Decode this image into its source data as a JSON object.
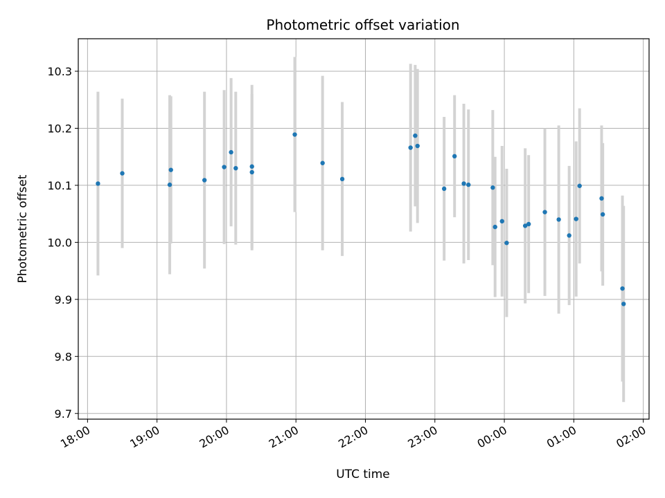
{
  "chart_data": {
    "type": "scatter",
    "title": "Photometric offset variation",
    "xlabel": "UTC time",
    "ylabel": "Photometric offset",
    "x_tick_labels": [
      "18:00",
      "19:00",
      "20:00",
      "21:00",
      "22:00",
      "23:00",
      "00:00",
      "01:00",
      "02:00"
    ],
    "y_tick_labels": [
      "9.7",
      "9.8",
      "9.9",
      "10.0",
      "10.1",
      "10.2",
      "10.3"
    ],
    "y_ticks": [
      9.7,
      9.8,
      9.9,
      10.0,
      10.1,
      10.2,
      10.3
    ],
    "xlim": [
      "17:52",
      "02:05"
    ],
    "ylim": [
      9.69,
      10.357
    ],
    "grid": true,
    "marker_color": "#1f77b4",
    "errorbar_color": "#d3d3d3",
    "points": [
      {
        "x": "18:09",
        "y": 10.103,
        "err": 0.161
      },
      {
        "x": "18:30",
        "y": 10.121,
        "err": 0.131
      },
      {
        "x": "19:11",
        "y": 10.101,
        "err": 0.157
      },
      {
        "x": "19:12",
        "y": 10.127,
        "err": 0.129
      },
      {
        "x": "19:41",
        "y": 10.109,
        "err": 0.155
      },
      {
        "x": "19:58",
        "y": 10.132,
        "err": 0.135
      },
      {
        "x": "20:04",
        "y": 10.158,
        "err": 0.13
      },
      {
        "x": "20:08",
        "y": 10.13,
        "err": 0.134
      },
      {
        "x": "20:22",
        "y": 10.123,
        "err": 0.137
      },
      {
        "x": "20:22",
        "y": 10.133,
        "err": 0.143
      },
      {
        "x": "20:59",
        "y": 10.189,
        "err": 0.136
      },
      {
        "x": "21:23",
        "y": 10.139,
        "err": 0.153
      },
      {
        "x": "21:40",
        "y": 10.111,
        "err": 0.135
      },
      {
        "x": "22:39",
        "y": 10.166,
        "err": 0.147
      },
      {
        "x": "22:43",
        "y": 10.187,
        "err": 0.124
      },
      {
        "x": "22:45",
        "y": 10.169,
        "err": 0.135
      },
      {
        "x": "23:08",
        "y": 10.094,
        "err": 0.126
      },
      {
        "x": "23:17",
        "y": 10.151,
        "err": 0.107
      },
      {
        "x": "23:25",
        "y": 10.103,
        "err": 0.14
      },
      {
        "x": "23:29",
        "y": 10.101,
        "err": 0.132
      },
      {
        "x": "23:50",
        "y": 10.096,
        "err": 0.136
      },
      {
        "x": "23:52",
        "y": 10.027,
        "err": 0.123
      },
      {
        "x": "23:58",
        "y": 10.037,
        "err": 0.132
      },
      {
        "x": "00:02",
        "y": 9.999,
        "err": 0.13
      },
      {
        "x": "00:18",
        "y": 10.029,
        "err": 0.136
      },
      {
        "x": "00:21",
        "y": 10.032,
        "err": 0.121
      },
      {
        "x": "00:35",
        "y": 10.053,
        "err": 0.147
      },
      {
        "x": "00:47",
        "y": 10.04,
        "err": 0.165
      },
      {
        "x": "00:56",
        "y": 10.012,
        "err": 0.122
      },
      {
        "x": "01:02",
        "y": 10.041,
        "err": 0.136
      },
      {
        "x": "01:05",
        "y": 10.099,
        "err": 0.136
      },
      {
        "x": "01:24",
        "y": 10.077,
        "err": 0.128
      },
      {
        "x": "01:25",
        "y": 10.049,
        "err": 0.125
      },
      {
        "x": "01:42",
        "y": 9.919,
        "err": 0.163
      },
      {
        "x": "01:43",
        "y": 9.892,
        "err": 0.172
      }
    ]
  }
}
